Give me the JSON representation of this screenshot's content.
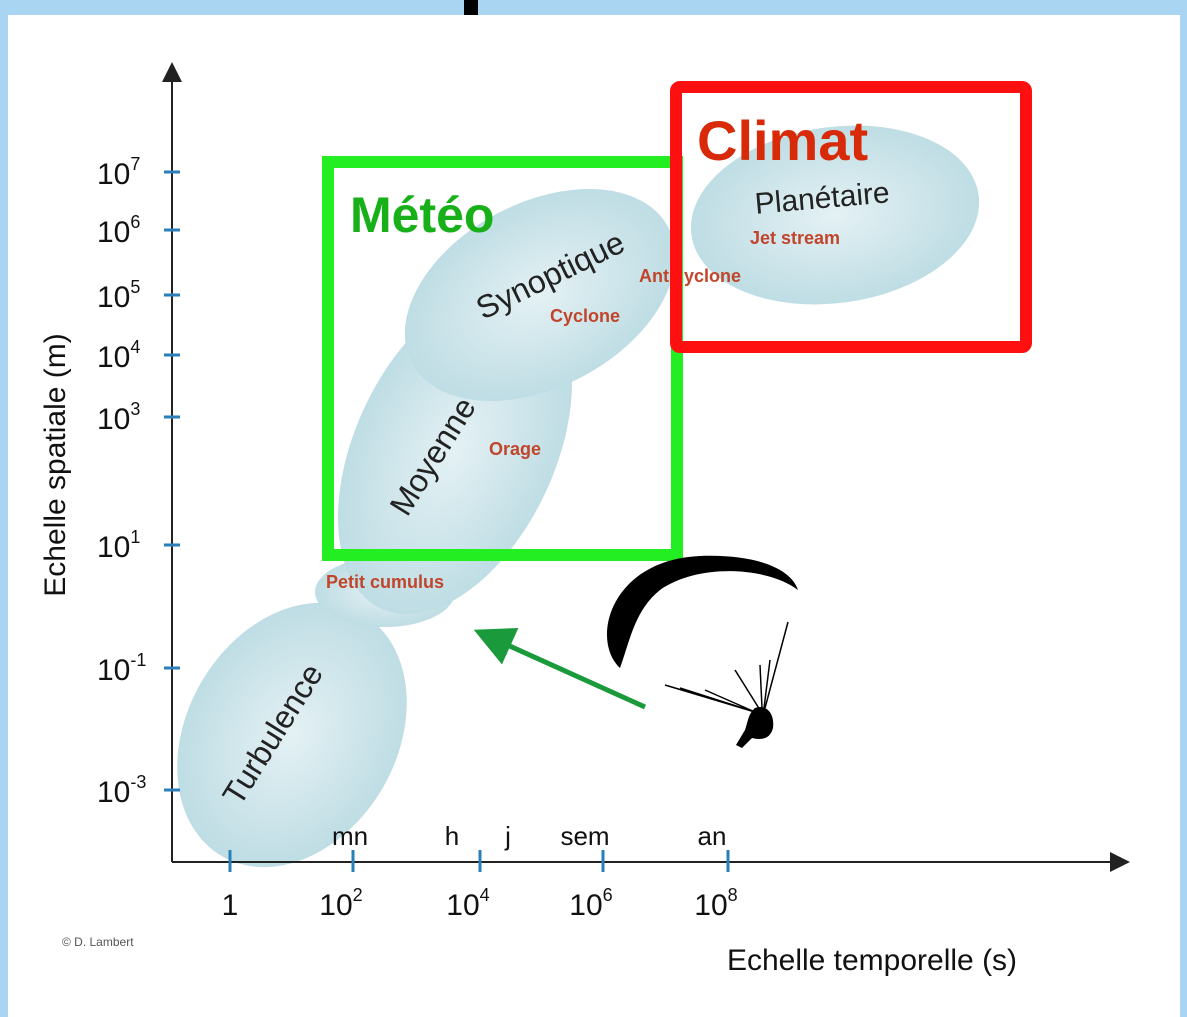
{
  "diagram": {
    "y_axis": {
      "title": "Echelle spatiale (m)",
      "ticks": [
        {
          "base": "10",
          "exp": "7"
        },
        {
          "base": "10",
          "exp": "6"
        },
        {
          "base": "10",
          "exp": "5"
        },
        {
          "base": "10",
          "exp": "4"
        },
        {
          "base": "10",
          "exp": "3"
        },
        {
          "base": "10",
          "exp": "1"
        },
        {
          "base": "10",
          "exp": "-1"
        },
        {
          "base": "10",
          "exp": "-3"
        }
      ]
    },
    "x_axis": {
      "title": "Echelle temporelle (s)",
      "ticks": [
        {
          "base": "1",
          "exp": ""
        },
        {
          "base": "10",
          "exp": "2"
        },
        {
          "base": "10",
          "exp": "4"
        },
        {
          "base": "10",
          "exp": "6"
        },
        {
          "base": "10",
          "exp": "8"
        }
      ],
      "units": [
        "mn",
        "h",
        "j",
        "sem",
        "an"
      ]
    },
    "scales": [
      "Turbulence",
      "Moyenne",
      "Synoptique",
      "Planétaire"
    ],
    "phenomena": [
      "Petit cumulus",
      "Orage",
      "Cyclone",
      "Anticyclone",
      "Jet stream"
    ],
    "boxes": {
      "weather": "Météo",
      "climate": "Climat"
    },
    "credit": "© D. Lambert"
  }
}
